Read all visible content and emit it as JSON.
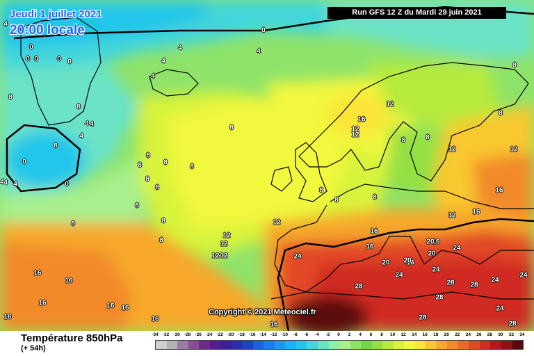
{
  "header": {
    "date": "Jeudi 1 juillet 2021",
    "time": "20:00 locale",
    "run": "Run GFS 12 Z du Mardi 29 juin 2021"
  },
  "copyright": "Copyright © 2021 Meteociel.fr",
  "legend": {
    "parameter": "Température 850hPa",
    "lead_time": "(+ 54h)",
    "ticks": [
      "-34",
      "-32",
      "-30",
      "-28",
      "-26",
      "-24",
      "-22",
      "-20",
      "-18",
      "-16",
      "-14",
      "-12",
      "-10",
      "-8",
      "-6",
      "-4",
      "-2",
      "0",
      "2",
      "4",
      "6",
      "8",
      "10",
      "12",
      "14",
      "16",
      "18",
      "20",
      "22",
      "24",
      "26",
      "28",
      "30",
      "32",
      "34"
    ],
    "colors": [
      "#cfcfcf",
      "#b3b3b3",
      "#9b7ba3",
      "#8a4f93",
      "#6e2a86",
      "#541f86",
      "#3e1f8f",
      "#2a2fa8",
      "#1d43c4",
      "#1c5fe0",
      "#1a7cf2",
      "#1a98f5",
      "#19b2f3",
      "#22c6ea",
      "#43d6da",
      "#6be3c6",
      "#8fefa9",
      "#a7f08d",
      "#8fe36a",
      "#74d34f",
      "#94e043",
      "#b6ea3c",
      "#d8f33a",
      "#f2f83c",
      "#fbe537",
      "#f9c72f",
      "#f7a82b",
      "#f28a2a",
      "#ec6a29",
      "#e24a27",
      "#d02a22",
      "#b8161d",
      "#8e0f16",
      "#5c070d"
    ]
  },
  "isotherm_labels": [
    {
      "v": "4"
    },
    {
      "v": "0"
    },
    {
      "v": "0"
    },
    {
      "v": "0"
    },
    {
      "v": "0"
    },
    {
      "v": "0"
    },
    {
      "v": "0"
    },
    {
      "v": "4"
    },
    {
      "v": "4"
    },
    {
      "v": "4"
    },
    {
      "v": "4"
    },
    {
      "v": "8"
    },
    {
      "v": "4"
    },
    {
      "v": "4"
    },
    {
      "v": "4"
    },
    {
      "v": "0"
    },
    {
      "v": "0"
    },
    {
      "v": "4"
    },
    {
      "v": "4"
    },
    {
      "v": "8"
    },
    {
      "v": "8"
    },
    {
      "v": "8"
    },
    {
      "v": "8"
    },
    {
      "v": "8"
    },
    {
      "v": "8"
    },
    {
      "v": "8"
    },
    {
      "v": "8"
    },
    {
      "v": "8"
    },
    {
      "v": "8"
    },
    {
      "v": "8"
    },
    {
      "v": "8"
    },
    {
      "v": "8"
    },
    {
      "v": "8"
    },
    {
      "v": "8"
    },
    {
      "v": "8"
    },
    {
      "v": "8"
    },
    {
      "v": "12"
    },
    {
      "v": "16"
    },
    {
      "v": "12"
    },
    {
      "v": "12"
    },
    {
      "v": "8"
    },
    {
      "v": "12"
    },
    {
      "v": "12"
    },
    {
      "v": "12"
    },
    {
      "v": "12"
    },
    {
      "v": "12"
    },
    {
      "v": "12"
    },
    {
      "v": "16"
    },
    {
      "v": "16"
    },
    {
      "v": "16"
    },
    {
      "v": "16"
    },
    {
      "v": "16"
    },
    {
      "v": "16"
    },
    {
      "v": "20"
    },
    {
      "v": "20"
    },
    {
      "v": "20"
    },
    {
      "v": "20"
    },
    {
      "v": "24"
    },
    {
      "v": "24"
    },
    {
      "v": "24"
    },
    {
      "v": "24"
    },
    {
      "v": "24"
    },
    {
      "v": "24"
    },
    {
      "v": "24"
    },
    {
      "v": "28"
    },
    {
      "v": "28"
    },
    {
      "v": "28"
    },
    {
      "v": "28"
    },
    {
      "v": "28"
    },
    {
      "v": "28"
    },
    {
      "v": "16"
    },
    {
      "v": "16"
    },
    {
      "v": "16"
    },
    {
      "v": "16"
    },
    {
      "v": "16"
    },
    {
      "v": "16"
    },
    {
      "v": "16"
    },
    {
      "v": "16"
    },
    {
      "v": "12"
    },
    {
      "v": "8"
    },
    {
      "v": "8"
    },
    {
      "v": "12"
    },
    {
      "v": "4"
    }
  ]
}
